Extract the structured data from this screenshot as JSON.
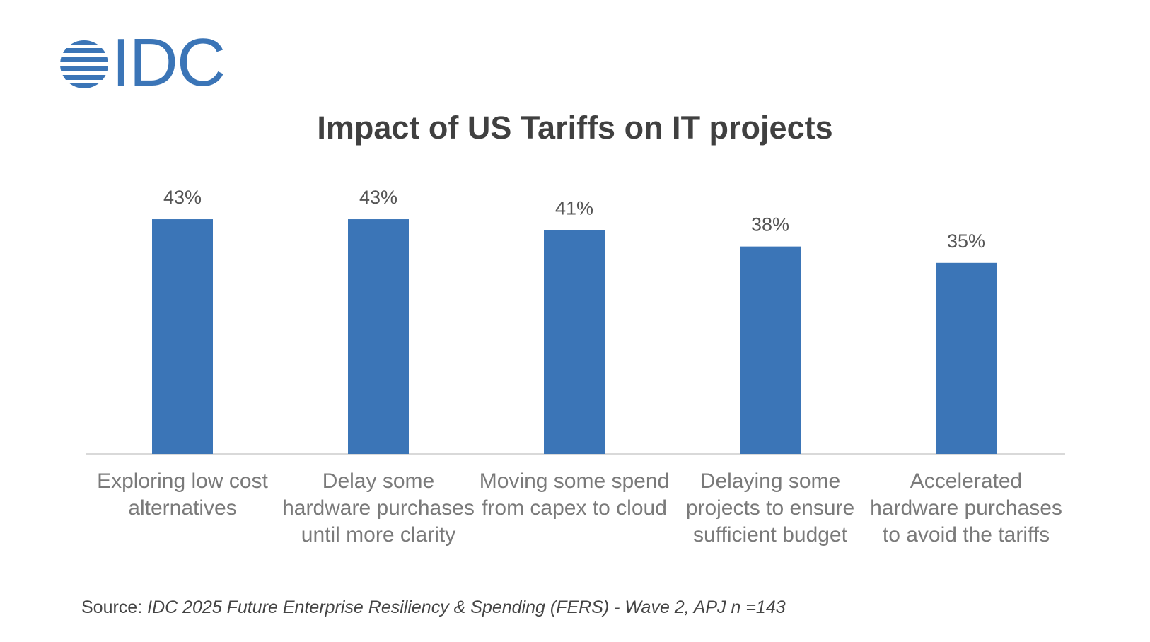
{
  "logo": "IDC",
  "chart_data": {
    "type": "bar",
    "title": "Impact of US Tariffs on IT projects",
    "categories": [
      "Exploring low cost alternatives",
      "Delay some hardware purchases until more clarity",
      "Moving some spend from capex to cloud",
      "Delaying some projects to ensure sufficient budget",
      "Accelerated hardware purchases to avoid the tariffs"
    ],
    "values": [
      43,
      43,
      41,
      38,
      35
    ],
    "value_labels": [
      "43%",
      "43%",
      "41%",
      "38%",
      "35%"
    ],
    "color": "#3b75b7",
    "ylim": [
      0,
      50
    ]
  },
  "source_label": "Source:",
  "source": "IDC 2025 Future Enterprise Resiliency & Spending (FERS) - Wave 2, APJ n =143"
}
